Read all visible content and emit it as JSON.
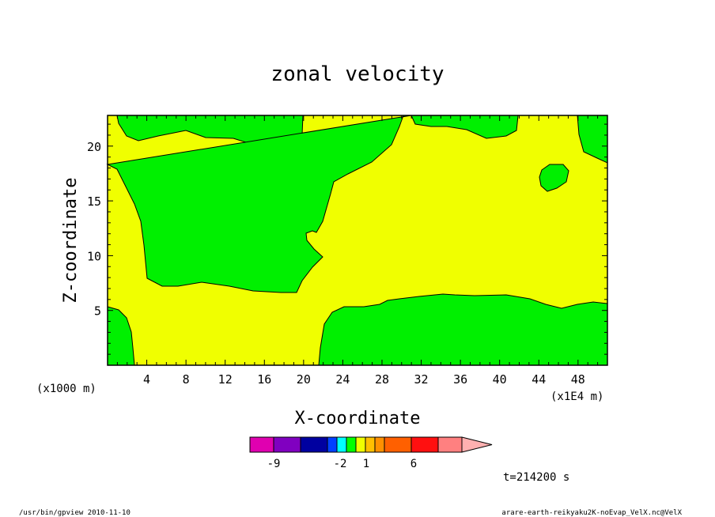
{
  "chart_data": {
    "type": "heatmap",
    "title": "zonal velocity",
    "xlabel": "X-coordinate",
    "ylabel": "Z-coordinate",
    "x_unit_note": "(x1E4 m)",
    "y_unit_note": "(x1000 m)",
    "xlim": [
      0,
      51
    ],
    "ylim": [
      0,
      22.8
    ],
    "x_ticks": [
      "4",
      "8",
      "12",
      "16",
      "20",
      "24",
      "28",
      "32",
      "36",
      "40",
      "44",
      "48"
    ],
    "y_ticks": [
      "5",
      "10",
      "15",
      "20"
    ],
    "colorbar": {
      "colors": [
        "#e000b0",
        "#8000c0",
        "#0000a0",
        "#0040ff",
        "#00ffff",
        "#00ff00",
        "#f0ff00",
        "#ffc000",
        "#ff9000",
        "#ff6000",
        "#ff1010",
        "#ff8080",
        "#ffb0b0"
      ],
      "labels": [
        "-9",
        "-2",
        "1",
        "6"
      ]
    },
    "regions": [
      {
        "name": "green-upper-left",
        "color": "#00f000"
      },
      {
        "name": "green-bottom-right",
        "color": "#00f000"
      },
      {
        "name": "green-blob",
        "color": "#00f000"
      },
      {
        "name": "yellow-background",
        "color": "#f0ff00"
      }
    ],
    "time_label": "t=214200 s"
  },
  "footer": {
    "left": "/usr/bin/gpview   2010-11-10",
    "right": "arare-earth-reikyaku2K-noEvap_VelX.nc@VelX"
  }
}
